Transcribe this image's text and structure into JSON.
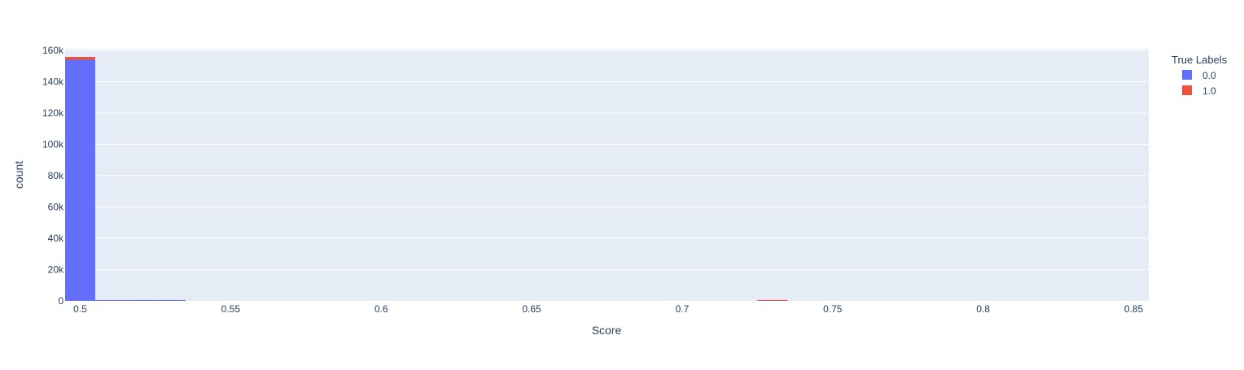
{
  "chart_data": {
    "type": "bar",
    "barmode": "stack",
    "xlabel": "Score",
    "ylabel": "count",
    "xlim": [
      0.495,
      0.855
    ],
    "ylim": [
      0,
      161000
    ],
    "x_ticks": [
      0.5,
      0.55,
      0.6,
      0.65,
      0.7,
      0.75,
      0.8,
      0.85
    ],
    "x_tick_labels": [
      "0.5",
      "0.55",
      "0.6",
      "0.65",
      "0.7",
      "0.75",
      "0.8",
      "0.85"
    ],
    "y_ticks": [
      0,
      20000,
      40000,
      60000,
      80000,
      100000,
      120000,
      140000,
      160000
    ],
    "y_tick_labels": [
      "0",
      "20k",
      "40k",
      "60k",
      "80k",
      "100k",
      "120k",
      "140k",
      "160k"
    ],
    "grid": true,
    "legend": {
      "title": "True Labels",
      "position": "top-right"
    },
    "bins": [
      {
        "start": 0.495,
        "end": 0.505
      },
      {
        "start": 0.505,
        "end": 0.515
      },
      {
        "start": 0.515,
        "end": 0.525
      },
      {
        "start": 0.525,
        "end": 0.535
      },
      {
        "start": 0.725,
        "end": 0.735
      }
    ],
    "series": [
      {
        "name": "0.0",
        "color": "#636efa",
        "values": [
          154000,
          300,
          250,
          200,
          80
        ]
      },
      {
        "name": "1.0",
        "color": "#ef553b",
        "values": [
          1800,
          0,
          0,
          0,
          350
        ]
      }
    ]
  },
  "colors": {
    "plot_background": "#e5ecf6",
    "grid": "#ffffff",
    "text": "#2a3f5f"
  }
}
